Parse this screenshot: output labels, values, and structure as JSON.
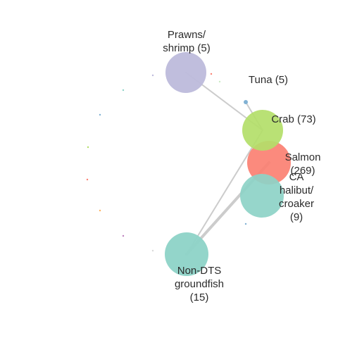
{
  "network": {
    "nodes": [
      {
        "id": "prawns",
        "label_lines": [
          "Prawns/",
          "shrimp (5)"
        ],
        "color": "#bdbadb",
        "value": 5
      },
      {
        "id": "tuna",
        "label_lines": [
          "Tuna (5)"
        ],
        "color": "#80b1d3",
        "value": 5
      },
      {
        "id": "crab",
        "label_lines": [
          "Crab (73)"
        ],
        "color": "#b3de69",
        "value": 73
      },
      {
        "id": "salmon",
        "label_lines": [
          "Salmon",
          "(269)"
        ],
        "color": "#fb8072",
        "value": 269
      },
      {
        "id": "halibut",
        "label_lines": [
          "CA",
          "halibut/",
          "croaker",
          "(9)"
        ],
        "color": "#8dd3c7",
        "value": 9
      },
      {
        "id": "nondts",
        "label_lines": [
          "Non-DTS",
          "groundfish",
          "(15)"
        ],
        "color": "#8dd3c7",
        "value": 15
      }
    ],
    "edges": [
      {
        "from": "prawns",
        "to": "crab"
      },
      {
        "from": "tuna",
        "to": "crab"
      },
      {
        "from": "nondts",
        "to": "salmon"
      },
      {
        "from": "nondts",
        "to": "crab"
      }
    ],
    "edge_color": "#cccccc",
    "minor_node_colors": [
      "#bdbadb",
      "#8dd3c7",
      "#80b1d3",
      "#b3de69",
      "#fb8072",
      "#fdb462",
      "#bc80bd",
      "#d9d9d9",
      "#ccebc5",
      "#80b1d3",
      "#fb8072"
    ]
  }
}
